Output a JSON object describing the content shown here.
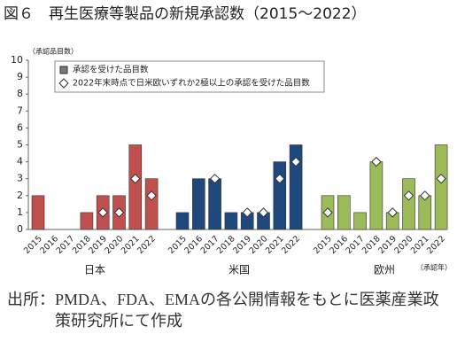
{
  "chart_data": {
    "type": "grouped_bar",
    "title": "図６　再生医療等製品の新規承認数（2015～2022）",
    "y_label": "（承認品目数）",
    "x_label": "（承認年）",
    "groups": [
      "日本",
      "米国",
      "欧州"
    ],
    "categories": [
      "2015",
      "2016",
      "2017",
      "2018",
      "2019",
      "2020",
      "2021",
      "2022"
    ],
    "series": [
      {
        "name": "承認を受けた品目数",
        "marker": "bar",
        "colors": [
          "#c0504d",
          "#1f497d",
          "#9bbb59"
        ],
        "values": [
          [
            2,
            0,
            0,
            1,
            2,
            2,
            5,
            3
          ],
          [
            1,
            3,
            3,
            1,
            1,
            1,
            4,
            5
          ],
          [
            2,
            2,
            1,
            4,
            1,
            3,
            2,
            5
          ]
        ]
      },
      {
        "name": "2022年末時点で日米欧いずれか2極以上の承認を受けた品目数",
        "marker": "diamond",
        "color": "#ffffff",
        "values": [
          [
            null,
            null,
            null,
            null,
            1,
            1,
            3,
            2
          ],
          [
            null,
            null,
            3,
            null,
            1,
            1,
            3,
            4
          ],
          [
            1,
            null,
            null,
            4,
            1,
            2,
            2,
            3
          ]
        ]
      }
    ],
    "ylim": [
      0,
      10
    ],
    "yticks": [
      0,
      1,
      2,
      3,
      4,
      5,
      6,
      7,
      8,
      9,
      10
    ],
    "source": "出所：PMDA、FDA、EMAの各公開情報をもとに医薬産業政策研究所にて作成"
  }
}
